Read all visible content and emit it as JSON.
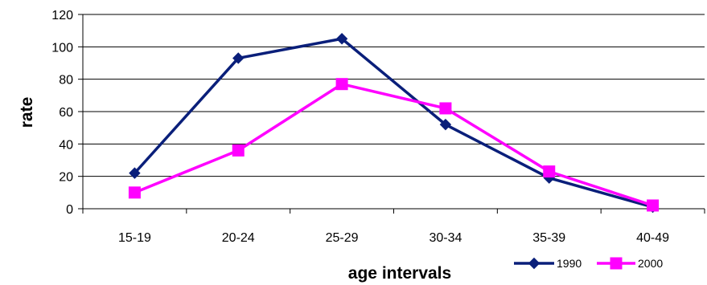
{
  "chart_data": {
    "type": "line",
    "title": "",
    "xlabel": "age intervals",
    "ylabel": "rate",
    "categories": [
      "15-19",
      "20-24",
      "25-29",
      "30-34",
      "35-39",
      "40-49"
    ],
    "ylim": [
      0,
      120
    ],
    "yticks": [
      0,
      20,
      40,
      60,
      80,
      100,
      120
    ],
    "grid": true,
    "legend_position": "bottom-right",
    "series": [
      {
        "name": "1990",
        "values": [
          22,
          93,
          105,
          52,
          19,
          1
        ],
        "color": "#0a1f7a",
        "marker": "diamond"
      },
      {
        "name": "2000",
        "values": [
          10,
          36,
          77,
          62,
          23,
          2
        ],
        "color": "#ff00ff",
        "marker": "square"
      }
    ]
  }
}
